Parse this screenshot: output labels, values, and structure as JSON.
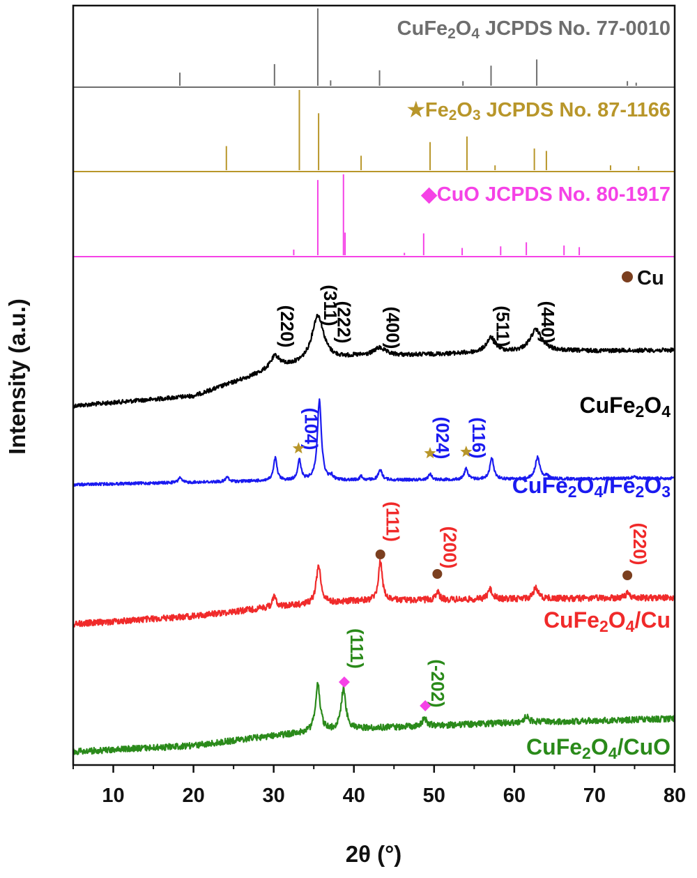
{
  "chart_data": {
    "type": "line",
    "xlabel": "2θ (°)",
    "ylabel": "Intensity (a.u.)",
    "xlim": [
      5,
      80
    ],
    "x_ticks": [
      10,
      20,
      30,
      40,
      50,
      60,
      70,
      80
    ],
    "legend_marker": {
      "symbol": "●",
      "label": "Cu",
      "color": "#7b3f1f"
    },
    "reference_patterns": [
      {
        "symbol": "",
        "label": "CuFe₂O₄ JCPDS No. 77-0010",
        "color": "#6e6e6e",
        "peaks": [
          [
            18.3,
            0.17
          ],
          [
            30.1,
            0.28
          ],
          [
            35.5,
            1.0
          ],
          [
            37.1,
            0.07
          ],
          [
            43.2,
            0.2
          ],
          [
            53.6,
            0.06
          ],
          [
            57.1,
            0.26
          ],
          [
            62.8,
            0.34
          ],
          [
            74.1,
            0.06
          ],
          [
            75.2,
            0.04
          ]
        ]
      },
      {
        "symbol": "★",
        "label": "Fe₂O₃ JCPDS No. 87-1166",
        "color": "#b8962a",
        "peaks": [
          [
            24.1,
            0.3
          ],
          [
            33.2,
            1.0
          ],
          [
            35.6,
            0.71
          ],
          [
            40.9,
            0.18
          ],
          [
            49.5,
            0.35
          ],
          [
            54.1,
            0.42
          ],
          [
            57.6,
            0.06
          ],
          [
            62.5,
            0.27
          ],
          [
            64.0,
            0.24
          ],
          [
            72.0,
            0.06
          ],
          [
            75.5,
            0.05
          ]
        ]
      },
      {
        "symbol": "◆",
        "label": "CuO JCPDS No. 80-1917",
        "color": "#f542e6",
        "peaks": [
          [
            32.5,
            0.07
          ],
          [
            35.5,
            0.93
          ],
          [
            38.7,
            1.0
          ],
          [
            38.9,
            0.28
          ],
          [
            46.3,
            0.03
          ],
          [
            48.7,
            0.27
          ],
          [
            53.5,
            0.09
          ],
          [
            58.3,
            0.11
          ],
          [
            61.5,
            0.16
          ],
          [
            66.2,
            0.12
          ],
          [
            68.1,
            0.1
          ]
        ]
      }
    ],
    "series": [
      {
        "name": "CuFe₂O₄",
        "color": "#000000",
        "baseline": [
          [
            5,
            0.0
          ],
          [
            20,
            0.1
          ],
          [
            30,
            0.38
          ],
          [
            40,
            0.5
          ],
          [
            55,
            0.54
          ],
          [
            65,
            0.56
          ],
          [
            80,
            0.57
          ]
        ],
        "peaks": [
          [
            30.2,
            0.12,
            0.7
          ],
          [
            35.5,
            0.48,
            0.9
          ],
          [
            43.2,
            0.08,
            0.9
          ],
          [
            57.1,
            0.15,
            0.7
          ],
          [
            62.7,
            0.22,
            0.9
          ]
        ],
        "annotations": [
          {
            "text": "(220)",
            "x": 30.1,
            "color": "#000000",
            "marker": ""
          },
          {
            "text": "(311)",
            "x": 35.5,
            "color": "#000000",
            "marker": ""
          },
          {
            "text": "(222)",
            "x": 37.2,
            "color": "#000000",
            "marker": ""
          },
          {
            "text": "(400)",
            "x": 43.3,
            "color": "#000000",
            "marker": ""
          },
          {
            "text": "(511)",
            "x": 57.0,
            "color": "#000000",
            "marker": ""
          },
          {
            "text": "(440)",
            "x": 62.6,
            "color": "#000000",
            "marker": ""
          }
        ]
      },
      {
        "name": "CuFe₂O₄/Fe₂O₃",
        "color": "#1a1af0",
        "baseline": [
          [
            5,
            0.0
          ],
          [
            30,
            0.05
          ],
          [
            80,
            0.08
          ]
        ],
        "peaks": [
          [
            18.3,
            0.07,
            0.2
          ],
          [
            24.2,
            0.06,
            0.2
          ],
          [
            30.2,
            0.28,
            0.25
          ],
          [
            33.2,
            0.25,
            0.25
          ],
          [
            35.7,
            1.0,
            0.3
          ],
          [
            37.2,
            0.05,
            0.2
          ],
          [
            40.9,
            0.05,
            0.2
          ],
          [
            43.3,
            0.12,
            0.3
          ],
          [
            49.5,
            0.07,
            0.25
          ],
          [
            54.0,
            0.14,
            0.25
          ],
          [
            57.2,
            0.26,
            0.3
          ],
          [
            62.9,
            0.27,
            0.35
          ],
          [
            64.1,
            0.04,
            0.2
          ],
          [
            74.9,
            0.03,
            0.3
          ]
        ],
        "annotations": [
          {
            "text": "(104)",
            "x": 33.1,
            "color": "#1a1af0",
            "marker": "★"
          },
          {
            "text": "(024)",
            "x": 49.5,
            "color": "#1a1af0",
            "marker": "★"
          },
          {
            "text": "(116)",
            "x": 54.0,
            "color": "#1a1af0",
            "marker": "★"
          }
        ]
      },
      {
        "name": "CuFe₂O₄/Cu",
        "color": "#f02a2a",
        "baseline": [
          [
            5,
            0.0
          ],
          [
            20,
            0.12
          ],
          [
            30,
            0.26
          ],
          [
            40,
            0.35
          ],
          [
            60,
            0.38
          ],
          [
            80,
            0.4
          ]
        ],
        "peaks": [
          [
            30.1,
            0.15,
            0.3
          ],
          [
            35.6,
            0.58,
            0.35
          ],
          [
            43.3,
            0.58,
            0.3
          ],
          [
            50.4,
            0.12,
            0.3
          ],
          [
            57.0,
            0.15,
            0.35
          ],
          [
            62.7,
            0.16,
            0.4
          ],
          [
            74.1,
            0.07,
            0.3
          ]
        ],
        "annotations": [
          {
            "text": "(111)",
            "x": 43.3,
            "color": "#f02a2a",
            "marker": "●"
          },
          {
            "text": "(200)",
            "x": 50.4,
            "color": "#f02a2a",
            "marker": "●"
          },
          {
            "text": "(220)",
            "x": 74.1,
            "color": "#f02a2a",
            "marker": "●"
          }
        ]
      },
      {
        "name": "CuFe₂O₄/CuO",
        "color": "#2a8a1a",
        "baseline": [
          [
            5,
            0.0
          ],
          [
            20,
            0.08
          ],
          [
            30,
            0.21
          ],
          [
            40,
            0.3
          ],
          [
            60,
            0.38
          ],
          [
            80,
            0.43
          ]
        ],
        "peaks": [
          [
            35.5,
            0.62,
            0.35
          ],
          [
            38.7,
            0.52,
            0.35
          ],
          [
            48.8,
            0.1,
            0.35
          ],
          [
            61.5,
            0.07,
            0.4
          ]
        ],
        "annotations": [
          {
            "text": "(111)",
            "x": 38.8,
            "color": "#2a8a1a",
            "marker": "◆"
          },
          {
            "text": "(-202)",
            "x": 48.9,
            "color": "#2a8a1a",
            "marker": "◆"
          }
        ]
      }
    ]
  }
}
